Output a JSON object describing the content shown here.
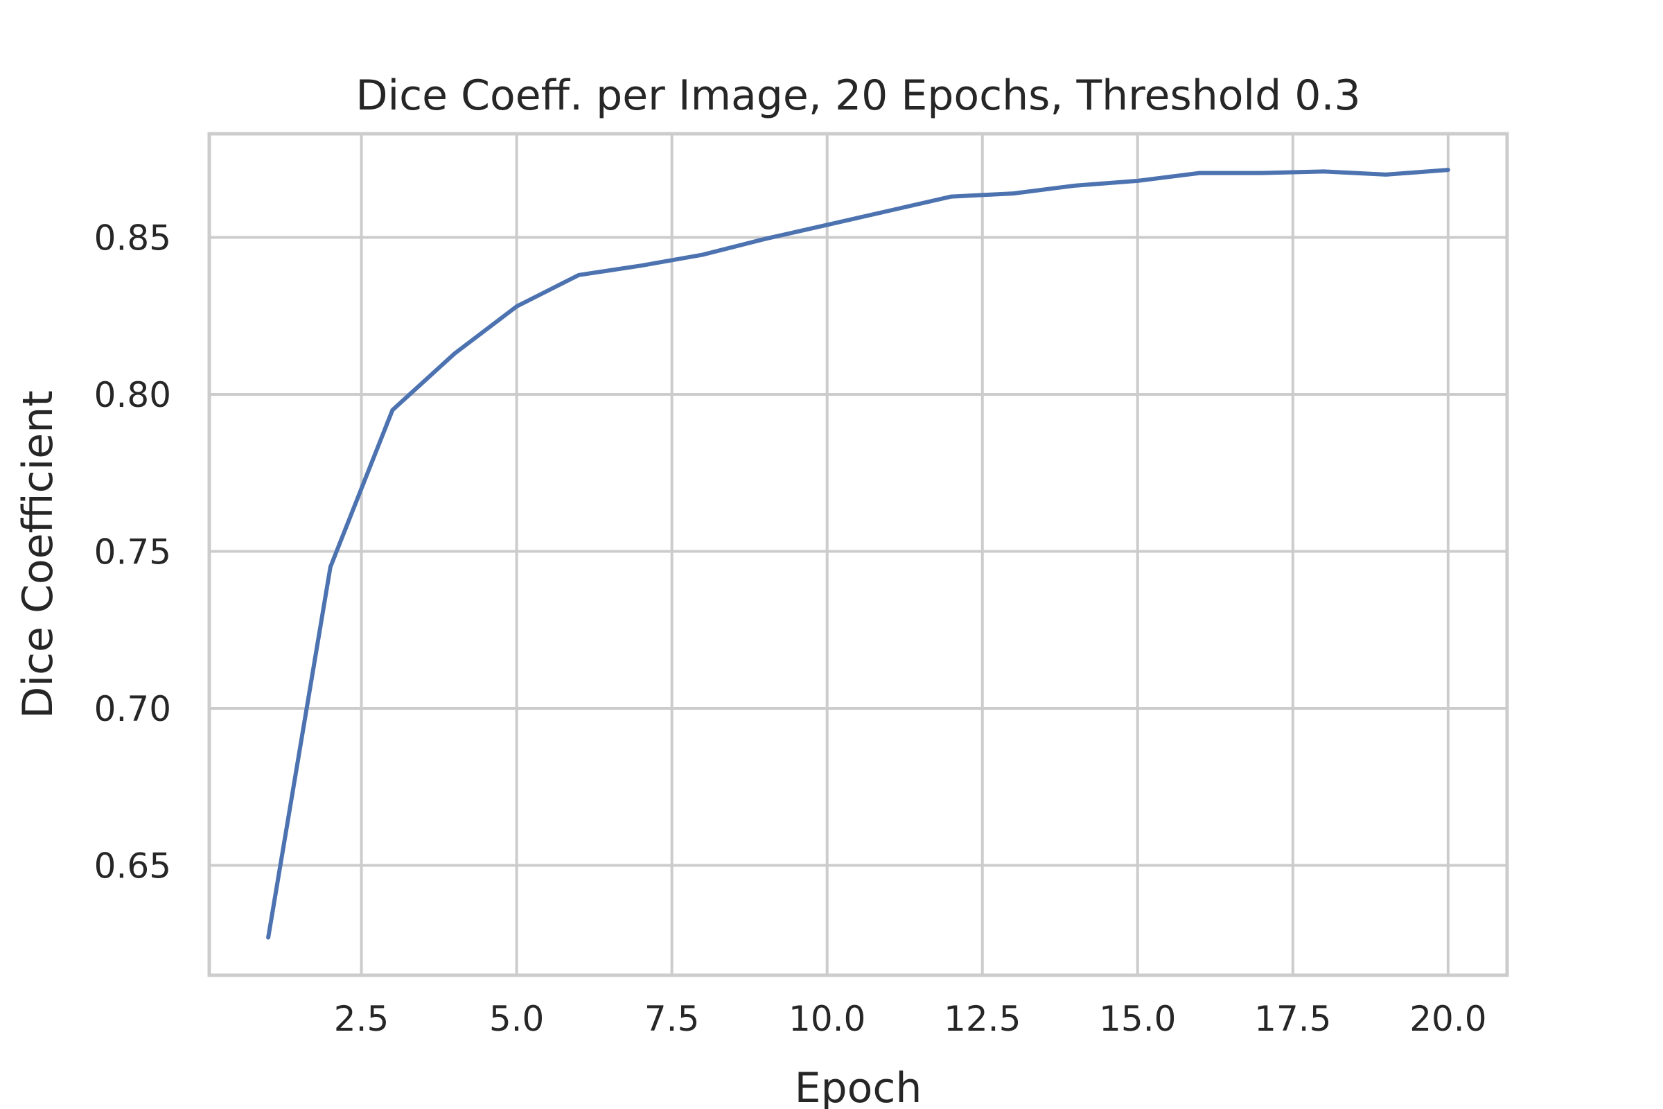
{
  "chart_data": {
    "type": "line",
    "title": "Dice Coeff. per Image, 20 Epochs, Threshold 0.3",
    "xlabel": "Epoch",
    "ylabel": "Dice Coefficient",
    "xlim": [
      0.05,
      20.95
    ],
    "ylim": [
      0.615,
      0.883
    ],
    "xticks": [
      2.5,
      5.0,
      7.5,
      10.0,
      12.5,
      15.0,
      17.5,
      20.0
    ],
    "xtick_labels": [
      "2.5",
      "5.0",
      "7.5",
      "10.0",
      "12.5",
      "15.0",
      "17.5",
      "20.0"
    ],
    "yticks": [
      0.65,
      0.7,
      0.75,
      0.8,
      0.85
    ],
    "ytick_labels": [
      "0.65",
      "0.70",
      "0.75",
      "0.80",
      "0.85"
    ],
    "grid": true,
    "series": [
      {
        "color": "#4c72b0",
        "x": [
          1,
          2,
          3,
          4,
          5,
          6,
          7,
          8,
          9,
          10,
          11,
          12,
          13,
          14,
          15,
          16,
          17,
          18,
          19,
          20
        ],
        "values": [
          0.627,
          0.745,
          0.795,
          0.813,
          0.828,
          0.838,
          0.841,
          0.8445,
          0.8495,
          0.854,
          0.8585,
          0.863,
          0.864,
          0.8665,
          0.868,
          0.8705,
          0.8705,
          0.871,
          0.87,
          0.8715
        ]
      }
    ]
  }
}
